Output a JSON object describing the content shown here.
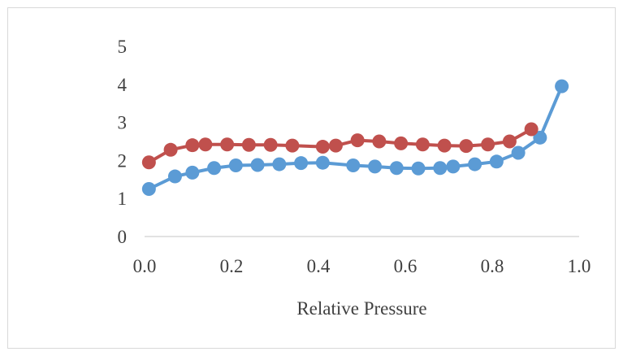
{
  "chart_data": {
    "type": "line",
    "title": "",
    "xlabel": "Relative Pressure",
    "ylabel": "",
    "xlim": [
      0.0,
      1.0
    ],
    "ylim": [
      0,
      5
    ],
    "x_ticks": [
      "0.0",
      "0.2",
      "0.4",
      "0.6",
      "0.8",
      "1.0"
    ],
    "y_ticks": [
      "0",
      "1",
      "2",
      "3",
      "4",
      "5"
    ],
    "grid": false,
    "legend": "none",
    "series": [
      {
        "color": "#5b9bd5",
        "x": [
          0.01,
          0.07,
          0.11,
          0.16,
          0.21,
          0.26,
          0.31,
          0.36,
          0.41,
          0.48,
          0.53,
          0.58,
          0.63,
          0.68,
          0.71,
          0.76,
          0.81,
          0.86,
          0.91,
          0.96
        ],
        "y": [
          1.25,
          1.58,
          1.68,
          1.8,
          1.87,
          1.88,
          1.9,
          1.93,
          1.94,
          1.87,
          1.84,
          1.8,
          1.79,
          1.8,
          1.84,
          1.9,
          1.97,
          2.2,
          2.6,
          3.95
        ]
      },
      {
        "color": "#c0504d",
        "x": [
          0.01,
          0.06,
          0.11,
          0.14,
          0.19,
          0.24,
          0.29,
          0.34,
          0.41,
          0.44,
          0.49,
          0.54,
          0.59,
          0.64,
          0.69,
          0.74,
          0.79,
          0.84,
          0.89
        ],
        "y": [
          1.95,
          2.28,
          2.4,
          2.42,
          2.42,
          2.41,
          2.41,
          2.39,
          2.36,
          2.39,
          2.53,
          2.5,
          2.45,
          2.42,
          2.39,
          2.38,
          2.42,
          2.5,
          2.82
        ]
      }
    ]
  }
}
